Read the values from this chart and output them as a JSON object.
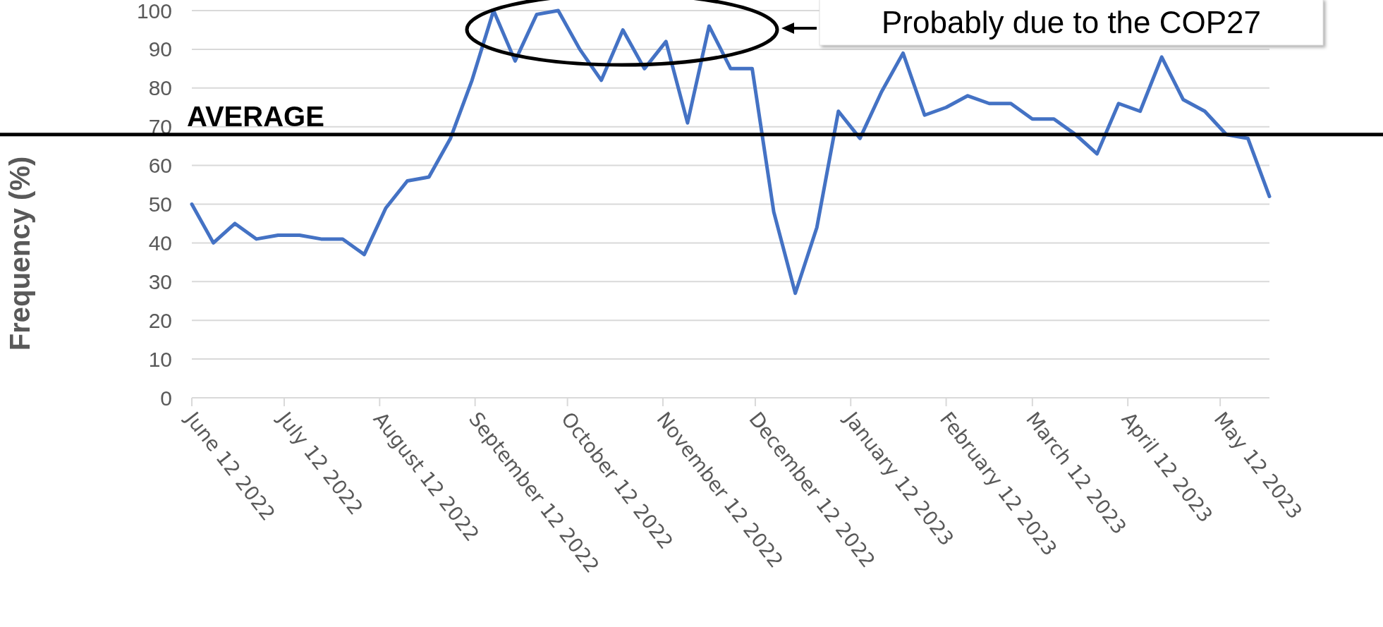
{
  "chart_data": {
    "type": "line",
    "ylabel": "Frequency (%)",
    "x": [
      "2022-06-12",
      "2022-06-19",
      "2022-06-26",
      "2022-07-03",
      "2022-07-10",
      "2022-07-17",
      "2022-07-24",
      "2022-07-31",
      "2022-08-07",
      "2022-08-14",
      "2022-08-21",
      "2022-08-28",
      "2022-09-04",
      "2022-09-11",
      "2022-09-18",
      "2022-09-25",
      "2022-10-02",
      "2022-10-09",
      "2022-10-16",
      "2022-10-23",
      "2022-10-30",
      "2022-11-06",
      "2022-11-13",
      "2022-11-20",
      "2022-11-27",
      "2022-12-04",
      "2022-12-11",
      "2022-12-18",
      "2022-12-25",
      "2023-01-01",
      "2023-01-08",
      "2023-01-15",
      "2023-01-22",
      "2023-01-29",
      "2023-02-05",
      "2023-02-12",
      "2023-02-19",
      "2023-02-26",
      "2023-03-05",
      "2023-03-12",
      "2023-03-19",
      "2023-03-26",
      "2023-04-02",
      "2023-04-09",
      "2023-04-16",
      "2023-04-23",
      "2023-04-30",
      "2023-05-07",
      "2023-05-14",
      "2023-05-21",
      "2023-05-28"
    ],
    "series": [
      {
        "color": "#4472c4",
        "values": [
          50,
          40,
          45,
          41,
          42,
          42,
          41,
          41,
          37,
          49,
          56,
          57,
          67,
          82,
          100,
          87,
          99,
          100,
          90,
          82,
          95,
          85,
          92,
          71,
          96,
          85,
          85,
          48,
          27,
          44,
          74,
          67,
          79,
          89,
          73,
          75,
          78,
          76,
          76,
          72,
          72,
          68,
          63,
          76,
          74,
          88,
          77,
          74,
          68,
          67,
          52
        ]
      }
    ],
    "xlim": [
      "2022-06-12",
      "2023-05-28"
    ],
    "xticks": [
      {
        "value": "2022-06-12",
        "label": "June 12 2022"
      },
      {
        "value": "2022-07-12",
        "label": "July 12 2022"
      },
      {
        "value": "2022-08-12",
        "label": "August 12 2022"
      },
      {
        "value": "2022-09-12",
        "label": "September 12 2022"
      },
      {
        "value": "2022-10-12",
        "label": "October 12 2022"
      },
      {
        "value": "2022-11-12",
        "label": "November 12 2022"
      },
      {
        "value": "2022-12-12",
        "label": "December 12 2022"
      },
      {
        "value": "2023-01-12",
        "label": "January 12 2023"
      },
      {
        "value": "2023-02-12",
        "label": "February 12 2023"
      },
      {
        "value": "2023-03-12",
        "label": "March 12 2023"
      },
      {
        "value": "2023-04-12",
        "label": "April 12 2023"
      },
      {
        "value": "2023-05-12",
        "label": "May 12 2023"
      }
    ],
    "ylim": [
      0,
      100
    ],
    "yticks": [
      0,
      10,
      20,
      30,
      40,
      50,
      60,
      70,
      80,
      90,
      100
    ],
    "grid": "y",
    "marker": "none",
    "line_style": "solid",
    "ref_lines": [
      {
        "axis": "y",
        "value": 68,
        "label": "AVERAGE",
        "color": "#000000"
      }
    ],
    "annotations": [
      "Probably due to the COP27"
    ]
  }
}
